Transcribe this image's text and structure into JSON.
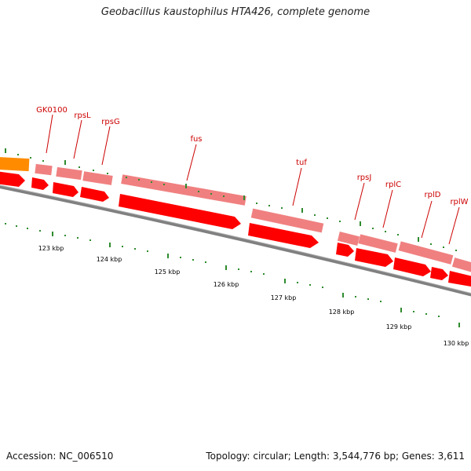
{
  "title": "Geobacillus kaustophilus HTA426, complete genome",
  "footer": {
    "accession": "Accession: NC_006510",
    "stats": "Topology: circular; Length: 3,544,776 bp; Genes: 3,611"
  },
  "colors": {
    "label": "#cc0000",
    "gene_outer": "#f08080",
    "gene_inner": "#ff0000",
    "orange_gene": "#ff8c00",
    "backbone": "#808080",
    "tick": "#2e8b2e"
  },
  "gene_labels": [
    "GK0100",
    "rpsL",
    "rpsG",
    "fus",
    "tuf",
    "rpsJ",
    "rplC",
    "rplD",
    "rplW"
  ],
  "kbp_labels": [
    "123 kbp",
    "124 kbp",
    "125 kbp",
    "126 kbp",
    "127 kbp",
    "128 kbp",
    "129 kbp",
    "130 kbp"
  ]
}
